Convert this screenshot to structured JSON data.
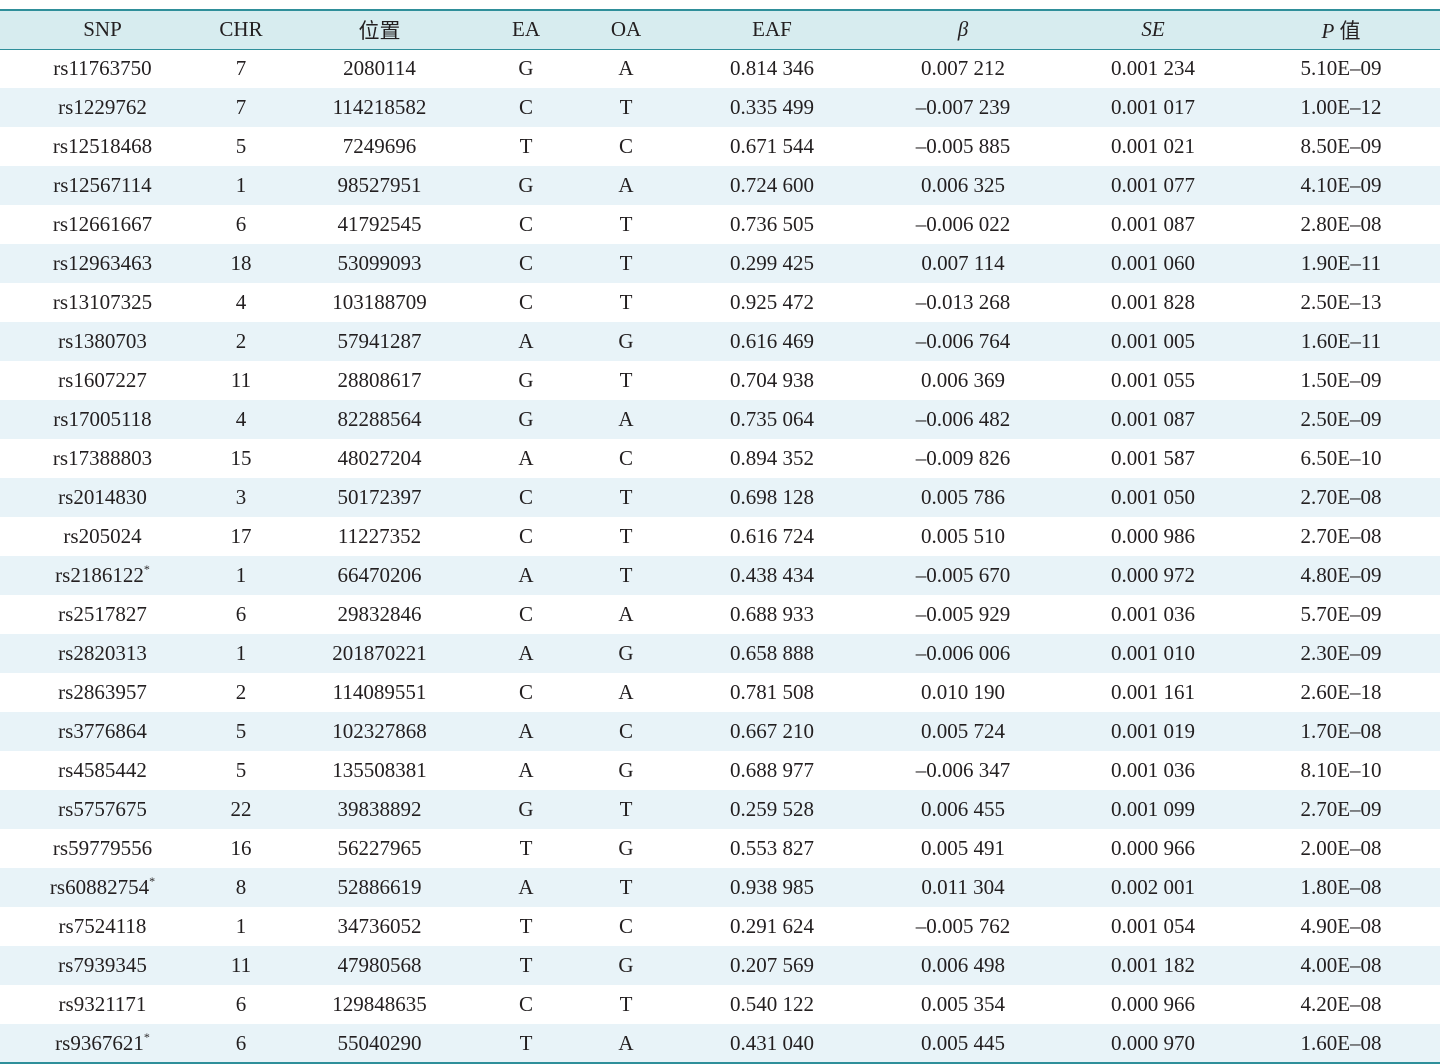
{
  "table": {
    "headers": [
      "SNP",
      "CHR",
      "位置",
      "EA",
      "OA",
      "EAF",
      "β",
      "SE",
      {
        "em": "P",
        "rest": "值"
      }
    ],
    "rows": [
      [
        "rs11763750",
        "7",
        "2080114",
        "G",
        "A",
        "0.814 346",
        "0.007 212",
        "0.001 234",
        "5.10E–09"
      ],
      [
        "rs1229762",
        "7",
        "114218582",
        "C",
        "T",
        "0.335 499",
        "–0.007 239",
        "0.001 017",
        "1.00E–12"
      ],
      [
        "rs12518468",
        "5",
        "7249696",
        "T",
        "C",
        "0.671 544",
        "–0.005 885",
        "0.001 021",
        "8.50E–09"
      ],
      [
        "rs12567114",
        "1",
        "98527951",
        "G",
        "A",
        "0.724 600",
        "0.006 325",
        "0.001 077",
        "4.10E–09"
      ],
      [
        "rs12661667",
        "6",
        "41792545",
        "C",
        "T",
        "0.736 505",
        "–0.006 022",
        "0.001 087",
        "2.80E–08"
      ],
      [
        "rs12963463",
        "18",
        "53099093",
        "C",
        "T",
        "0.299 425",
        "0.007 114",
        "0.001 060",
        "1.90E–11"
      ],
      [
        "rs13107325",
        "4",
        "103188709",
        "C",
        "T",
        "0.925 472",
        "–0.013 268",
        "0.001 828",
        "2.50E–13"
      ],
      [
        "rs1380703",
        "2",
        "57941287",
        "A",
        "G",
        "0.616 469",
        "–0.006 764",
        "0.001 005",
        "1.60E–11"
      ],
      [
        "rs1607227",
        "11",
        "28808617",
        "G",
        "T",
        "0.704 938",
        "0.006 369",
        "0.001 055",
        "1.50E–09"
      ],
      [
        "rs17005118",
        "4",
        "82288564",
        "G",
        "A",
        "0.735 064",
        "–0.006 482",
        "0.001 087",
        "2.50E–09"
      ],
      [
        "rs17388803",
        "15",
        "48027204",
        "A",
        "C",
        "0.894 352",
        "–0.009 826",
        "0.001 587",
        "6.50E–10"
      ],
      [
        "rs2014830",
        "3",
        "50172397",
        "C",
        "T",
        "0.698 128",
        "0.005 786",
        "0.001 050",
        "2.70E–08"
      ],
      [
        "rs205024",
        "17",
        "11227352",
        "C",
        "T",
        "0.616 724",
        "0.005 510",
        "0.000 986",
        "2.70E–08"
      ],
      [
        {
          "text": "rs2186122",
          "sup": "*"
        },
        "1",
        "66470206",
        "A",
        "T",
        "0.438 434",
        "–0.005 670",
        "0.000 972",
        "4.80E–09"
      ],
      [
        "rs2517827",
        "6",
        "29832846",
        "C",
        "A",
        "0.688 933",
        "–0.005 929",
        "0.001 036",
        "5.70E–09"
      ],
      [
        "rs2820313",
        "1",
        "201870221",
        "A",
        "G",
        "0.658 888",
        "–0.006 006",
        "0.001 010",
        "2.30E–09"
      ],
      [
        "rs2863957",
        "2",
        "114089551",
        "C",
        "A",
        "0.781 508",
        "0.010 190",
        "0.001 161",
        "2.60E–18"
      ],
      [
        "rs3776864",
        "5",
        "102327868",
        "A",
        "C",
        "0.667 210",
        "0.005 724",
        "0.001 019",
        "1.70E–08"
      ],
      [
        "rs4585442",
        "5",
        "135508381",
        "A",
        "G",
        "0.688 977",
        "–0.006 347",
        "0.001 036",
        "8.10E–10"
      ],
      [
        "rs5757675",
        "22",
        "39838892",
        "G",
        "T",
        "0.259 528",
        "0.006 455",
        "0.001 099",
        "2.70E–09"
      ],
      [
        "rs59779556",
        "16",
        "56227965",
        "T",
        "G",
        "0.553 827",
        "0.005 491",
        "0.000 966",
        "2.00E–08"
      ],
      [
        {
          "text": "rs60882754",
          "sup": "*"
        },
        "8",
        "52886619",
        "A",
        "T",
        "0.938 985",
        "0.011 304",
        "0.002 001",
        "1.80E–08"
      ],
      [
        "rs7524118",
        "1",
        "34736052",
        "T",
        "C",
        "0.291 624",
        "–0.005 762",
        "0.001 054",
        "4.90E–08"
      ],
      [
        "rs7939345",
        "11",
        "47980568",
        "T",
        "G",
        "0.207 569",
        "0.006 498",
        "0.001 182",
        "4.00E–08"
      ],
      [
        "rs9321171",
        "6",
        "129848635",
        "C",
        "T",
        "0.540 122",
        "0.005 354",
        "0.000 966",
        "4.20E–08"
      ],
      [
        {
          "text": "rs9367621",
          "sup": "*"
        },
        "6",
        "55040290",
        "T",
        "A",
        "0.431 040",
        "0.005 445",
        "0.000 970",
        "1.60E–08"
      ]
    ]
  }
}
